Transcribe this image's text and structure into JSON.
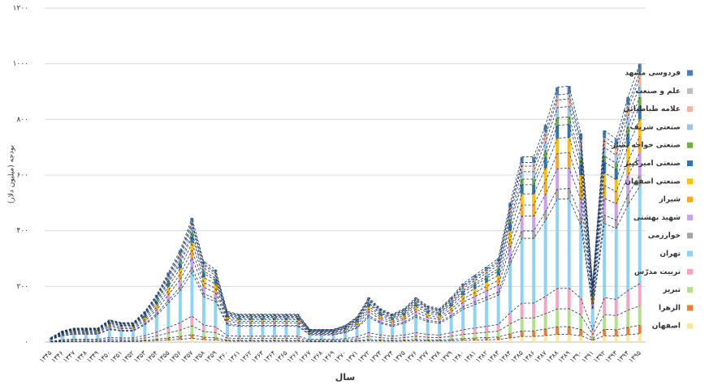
{
  "chart_data": {
    "type": "stacked_bar",
    "y_label": "بودجه (میلیون دلار)",
    "x_label": "سال",
    "categories": [
      "۱۳۴۵",
      "۱۳۴۶",
      "۱۳۴۷",
      "۱۳۴۸",
      "۱۳۴۹",
      "۱۳۵۰",
      "۱۳۵۱",
      "۱۳۵۲",
      "۱۳۵۳",
      "۱۳۵۴",
      "۱۳۵۵",
      "۱۳۵۶",
      "۱۳۵۷",
      "۱۳۵۸",
      "۱۳۵۹",
      "۱۳۶۰",
      "۱۳۶۱",
      "۱۳۶۲",
      "۱۳۶۳",
      "۱۳۶۴",
      "۱۳۶۵",
      "۱۳۶۶",
      "۱۳۶۷",
      "۱۳۶۸",
      "۱۳۶۹",
      "۱۳۷۰",
      "۱۳۷۱",
      "۱۳۷۲",
      "۱۳۷۳",
      "۱۳۷۴",
      "۱۳۷۵",
      "۱۳۷۶",
      "۱۳۷۷",
      "۱۳۷۸",
      "۱۳۷۹",
      "۱۳۸۰",
      "۱۳۸۱",
      "۱۳۸۲",
      "۱۳۸۳",
      "۱۳۸۴",
      "۱۳۸۵",
      "۱۳۸۶",
      "۱۳۸۷",
      "۱۳۸۸",
      "۱۳۸۹",
      "۱۳۹۰",
      "۱۳۹۱",
      "۱۳۹۲",
      "۱۳۹۳",
      "۱۳۹۴",
      "۱۳۹۵"
    ],
    "ylim": [
      0,
      1200
    ],
    "yticks": [
      {
        "value": 0,
        "label": "۰"
      },
      {
        "value": 200,
        "label": "۲۰۰"
      },
      {
        "value": 400,
        "label": "۴۰۰"
      },
      {
        "value": 600,
        "label": "۶۰۰"
      },
      {
        "value": 800,
        "label": "۸۰۰"
      },
      {
        "value": 1000,
        "label": "۱۰۰۰"
      },
      {
        "value": 1200,
        "label": "۱۲۰۰"
      }
    ],
    "grid": true,
    "legend": "right",
    "series": [
      {
        "name": "اصفهان",
        "color": "#ffe699",
        "values": [
          0.5,
          1.2,
          1.5,
          1.5,
          1.5,
          2.4,
          2.1,
          2.1,
          3.3,
          5.1,
          7.5,
          9.9,
          13.4,
          8.7,
          7.8,
          3.3,
          3,
          3,
          3,
          3,
          3,
          3,
          1.4,
          1.4,
          1.4,
          1.8,
          2.7,
          4.8,
          3.6,
          3,
          3.6,
          4.8,
          3.9,
          3.6,
          4.8,
          6.3,
          7.2,
          8.1,
          9,
          15,
          20,
          20,
          23.4,
          27.5,
          27.6,
          22.5,
          6.3,
          22.8,
          21.9,
          26.4,
          30
        ]
      },
      {
        "name": "الزهرا",
        "color": "#ed7d31",
        "values": [
          0.5,
          1.2,
          1.5,
          1.5,
          1.5,
          2.4,
          2.1,
          2.1,
          3.3,
          5.1,
          7.5,
          9.9,
          13.4,
          8.7,
          7.8,
          3.3,
          3,
          3,
          3,
          3,
          3,
          3,
          1.4,
          1.4,
          1.4,
          1.8,
          2.7,
          4.8,
          3.6,
          3,
          3.6,
          4.8,
          3.9,
          3.6,
          4.8,
          6.3,
          7.2,
          8.1,
          9,
          15,
          20,
          20,
          23.4,
          27.5,
          27.6,
          22.5,
          6.3,
          22.8,
          21.9,
          26.4,
          30
        ]
      },
      {
        "name": "تبریز",
        "color": "#b5e08a",
        "values": [
          1.1,
          2.8,
          3.5,
          3.5,
          3.5,
          5.6,
          4.9,
          4.9,
          7.7,
          11.9,
          17.5,
          23.1,
          31.2,
          20.3,
          18.2,
          7.7,
          7,
          7,
          7,
          7,
          7,
          7,
          3.2,
          3.2,
          3.2,
          4.2,
          6.3,
          11.2,
          8.4,
          7,
          8.4,
          11.2,
          9.1,
          8.4,
          11.2,
          14.7,
          16.8,
          18.9,
          21,
          35,
          46.6,
          46.6,
          54.6,
          64.1,
          64.4,
          52.5,
          14.7,
          53.2,
          51.1,
          61.6,
          70
        ]
      },
      {
        "name": "تربیت مدرّس",
        "color": "#f4a6c0",
        "values": [
          1.2,
          3.2,
          4,
          4,
          4,
          6.4,
          5.6,
          5.6,
          8.8,
          13.6,
          20,
          26.4,
          35.6,
          23.2,
          20.8,
          8.8,
          8,
          8,
          8,
          8,
          8,
          8,
          3.6,
          3.6,
          3.6,
          4.8,
          7.2,
          12.8,
          9.6,
          8,
          9.6,
          12.8,
          10.4,
          9.6,
          12.8,
          16.8,
          19.2,
          21.6,
          24,
          40,
          53.2,
          53.2,
          62.4,
          73.2,
          73.6,
          60,
          16.8,
          60.8,
          58.4,
          70.4,
          80
        ]
      },
      {
        "name": "تهران",
        "color": "#8fd3f4",
        "values": [
          5.3,
          14,
          17.5,
          17.5,
          17.5,
          28,
          24.5,
          24.5,
          38.5,
          59.5,
          87.5,
          115.5,
          155.8,
          101.5,
          91,
          38.5,
          35,
          35,
          35,
          35,
          35,
          35,
          15.8,
          15.8,
          15.8,
          21,
          31.5,
          56,
          42,
          35,
          42,
          56,
          45.5,
          42,
          56,
          73.5,
          84,
          94.5,
          105,
          175,
          232.8,
          232.8,
          273,
          320.3,
          322,
          262.5,
          73.5,
          266,
          255.5,
          308,
          350
        ]
      },
      {
        "name": "خوارزمی",
        "color": "#a5a5a5",
        "values": [
          0.6,
          1.6,
          2,
          2,
          2,
          3.2,
          2.8,
          2.8,
          4.4,
          6.8,
          10,
          13.2,
          17.8,
          11.6,
          10.4,
          4.4,
          4,
          4,
          4,
          4,
          4,
          4,
          1.8,
          1.8,
          1.8,
          2.4,
          3.6,
          6.4,
          4.8,
          4,
          4.8,
          6.4,
          5.2,
          4.8,
          6.4,
          8.4,
          9.6,
          10.8,
          12,
          20,
          26.6,
          26.6,
          31.2,
          36.6,
          36.8,
          30,
          8.4,
          30.4,
          29.2,
          35.2,
          40
        ]
      },
      {
        "name": "شهید بهشتی",
        "color": "#c9a0ec",
        "values": [
          1.2,
          3.2,
          4,
          4,
          4,
          6.4,
          5.6,
          5.6,
          8.8,
          13.6,
          20,
          26.4,
          35.6,
          23.2,
          20.8,
          8.8,
          8,
          8,
          8,
          8,
          8,
          8,
          3.6,
          3.6,
          3.6,
          4.8,
          7.2,
          12.8,
          9.6,
          8,
          9.6,
          12.8,
          10.4,
          9.6,
          12.8,
          16.8,
          19.2,
          21.6,
          24,
          40,
          53.2,
          53.2,
          62.4,
          73.2,
          73.6,
          60,
          16.8,
          60.8,
          58.4,
          70.4,
          80
        ]
      },
      {
        "name": "شیراز",
        "color": "#f9a825",
        "values": [
          0.9,
          2.4,
          3,
          3,
          3,
          4.8,
          4.2,
          4.2,
          6.6,
          10.2,
          15,
          19.8,
          26.7,
          17.4,
          15.6,
          6.6,
          6,
          6,
          6,
          6,
          6,
          6,
          2.7,
          2.7,
          2.7,
          3.6,
          5.4,
          9.6,
          7.2,
          6,
          7.2,
          9.6,
          7.8,
          7.2,
          9.6,
          12.6,
          14.4,
          16.2,
          18,
          30,
          39.9,
          39.9,
          46.8,
          54.9,
          55.2,
          45,
          12.6,
          45.6,
          43.8,
          52.8,
          60
        ]
      },
      {
        "name": "صنعتی اصفهان",
        "color": "#ffc000",
        "values": [
          0.9,
          2.4,
          3,
          3,
          3,
          4.8,
          4.2,
          4.2,
          6.6,
          10.2,
          15,
          19.8,
          26.7,
          17.4,
          15.6,
          6.6,
          6,
          6,
          6,
          6,
          6,
          6,
          2.7,
          2.7,
          2.7,
          3.6,
          5.4,
          9.6,
          7.2,
          6,
          7.2,
          9.6,
          7.8,
          7.2,
          9.6,
          12.6,
          14.4,
          16.2,
          18,
          30,
          39.9,
          39.9,
          46.8,
          54.9,
          55.2,
          45,
          12.6,
          45.6,
          43.8,
          52.8,
          60
        ]
      },
      {
        "name": "صنعتی امیرکبیر",
        "color": "#2e75b6",
        "values": [
          0.8,
          2,
          2.5,
          2.5,
          2.5,
          4,
          3.5,
          3.5,
          5.5,
          8.5,
          12.5,
          16.5,
          22.3,
          14.5,
          13,
          5.5,
          5,
          5,
          5,
          5,
          5,
          5,
          2.3,
          2.3,
          2.3,
          3,
          4.5,
          8,
          6,
          5,
          6,
          8,
          6.5,
          6,
          8,
          10.5,
          12,
          13.5,
          15,
          25,
          33.3,
          33.3,
          39,
          45.8,
          46,
          37.5,
          10.5,
          38,
          36.5,
          44,
          50
        ]
      },
      {
        "name": "صنعتی خواجه نصیر",
        "color": "#70ad47",
        "values": [
          0.5,
          1.2,
          1.5,
          1.5,
          1.5,
          2.4,
          2.1,
          2.1,
          3.3,
          5.1,
          7.5,
          9.9,
          13.4,
          8.7,
          7.8,
          3.3,
          3,
          3,
          3,
          3,
          3,
          3,
          1.4,
          1.4,
          1.4,
          1.8,
          2.7,
          4.8,
          3.6,
          3,
          3.6,
          4.8,
          3.9,
          3.6,
          4.8,
          6.3,
          7.2,
          8.1,
          9,
          15,
          20,
          20,
          23.4,
          27.5,
          27.6,
          22.5,
          6.3,
          22.8,
          21.9,
          26.4,
          30
        ]
      },
      {
        "name": "صنعتی شریف",
        "color": "#9dc3e6",
        "values": [
          0.6,
          1.6,
          2,
          2,
          2,
          3.2,
          2.8,
          2.8,
          4.4,
          6.8,
          10,
          13.2,
          17.8,
          11.6,
          10.4,
          4.4,
          4,
          4,
          4,
          4,
          4,
          4,
          1.8,
          1.8,
          1.8,
          2.4,
          3.6,
          6.4,
          4.8,
          4,
          4.8,
          6.4,
          5.2,
          4.8,
          6.4,
          8.4,
          9.6,
          10.8,
          12,
          20,
          26.6,
          26.6,
          31.2,
          36.6,
          36.8,
          30,
          8.4,
          30.4,
          29.2,
          35.2,
          40
        ]
      },
      {
        "name": "علامه طباطبایی",
        "color": "#f4b6a0",
        "values": [
          0.5,
          1.2,
          1.5,
          1.5,
          1.5,
          2.4,
          2.1,
          2.1,
          3.3,
          5.1,
          7.5,
          9.9,
          13.4,
          8.7,
          7.8,
          3.3,
          3,
          3,
          3,
          3,
          3,
          3,
          1.4,
          1.4,
          1.4,
          1.8,
          2.7,
          4.8,
          3.6,
          3,
          3.6,
          4.8,
          3.9,
          3.6,
          4.8,
          6.3,
          7.2,
          8.1,
          9,
          15,
          20,
          20,
          23.4,
          27.5,
          27.6,
          22.5,
          6.3,
          22.8,
          21.9,
          26.4,
          30
        ]
      },
      {
        "name": "علم و صنعت",
        "color": "#bfbfbf",
        "values": [
          0.3,
          0.8,
          1,
          1,
          1,
          1.6,
          1.4,
          1.4,
          2.2,
          3.4,
          5,
          6.6,
          8.9,
          5.8,
          5.2,
          2.2,
          2,
          2,
          2,
          2,
          2,
          2,
          0.9,
          0.9,
          0.9,
          1.2,
          1.8,
          3.2,
          2.4,
          2,
          2.4,
          3.2,
          2.6,
          2.4,
          3.2,
          4.2,
          4.8,
          5.4,
          6,
          10,
          13.3,
          13.3,
          15.6,
          18.3,
          18.4,
          15,
          4.2,
          15.2,
          14.6,
          17.6,
          20
        ]
      },
      {
        "name": "فردوسی مشهد",
        "color": "#4a7ebb",
        "values": [
          0.5,
          1.2,
          1.5,
          1.5,
          1.5,
          2.4,
          2.1,
          2.1,
          3.3,
          5.1,
          7.5,
          9.9,
          13.4,
          8.7,
          7.8,
          3.3,
          3,
          3,
          3,
          3,
          3,
          3,
          1.4,
          1.4,
          1.4,
          1.8,
          2.7,
          4.8,
          3.6,
          3,
          3.6,
          4.8,
          3.9,
          3.6,
          4.8,
          6.3,
          7.2,
          8.1,
          9,
          15,
          20,
          20,
          23.4,
          27.5,
          27.6,
          22.5,
          6.3,
          22.8,
          21.9,
          26.4,
          30
        ]
      }
    ]
  }
}
